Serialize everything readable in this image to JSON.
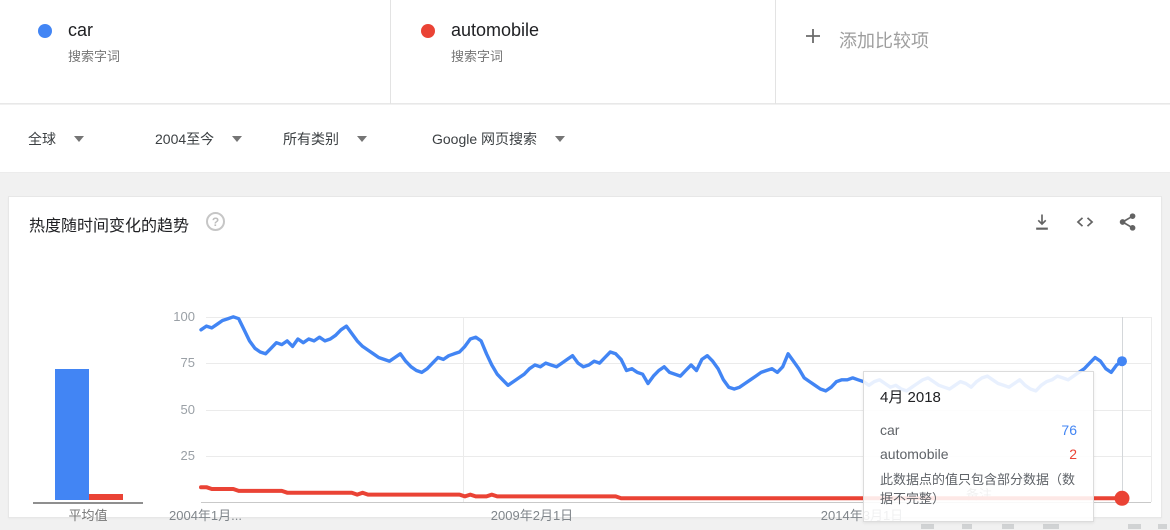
{
  "terms": [
    {
      "label": "car",
      "sublabel": "搜索字词",
      "color": "#4285F4"
    },
    {
      "label": "automobile",
      "sublabel": "搜索字词",
      "color": "#EA4335"
    }
  ],
  "add_comparison": {
    "label": "添加比较项"
  },
  "filters": [
    {
      "label": "全球"
    },
    {
      "label": "2004至今"
    },
    {
      "label": "所有类别"
    },
    {
      "label": "Google 网页搜索"
    }
  ],
  "chart_card": {
    "title": "热度随时间变化的趋势",
    "help_glyph": "?",
    "icons": [
      "download-icon",
      "embed-icon",
      "share-icon"
    ],
    "avg_label": "平均值",
    "note_label": "备注",
    "y_ticks": [
      "100",
      "75",
      "50",
      "25"
    ],
    "x_labels": [
      "2004年1月...",
      "2009年2月1日",
      "2014年3月1日"
    ]
  },
  "tooltip": {
    "date": "4月 2018",
    "rows": [
      {
        "label": "car",
        "value": "76",
        "color": "#4285F4"
      },
      {
        "label": "automobile",
        "value": "2",
        "color": "#EA4335"
      }
    ],
    "note": "此数据点的值只包含部分数据（数据不完整）"
  },
  "chart_data": {
    "type": "line",
    "title": "热度随时间变化的趋势",
    "x_start": "2004-01",
    "x_end": "2018-04",
    "x_tick_labels": [
      "2004年1月...",
      "2009年2月1日",
      "2014年3月1日"
    ],
    "ylim": [
      0,
      100
    ],
    "y_ticks": [
      25,
      50,
      75,
      100
    ],
    "grid": true,
    "series": [
      {
        "name": "car",
        "color": "#4285F4",
        "values": [
          93,
          95,
          94,
          96,
          98,
          99,
          100,
          99,
          93,
          87,
          83,
          81,
          80,
          83,
          86,
          85,
          87,
          84,
          88,
          86,
          88,
          87,
          89,
          87,
          88,
          90,
          93,
          95,
          91,
          87,
          84,
          82,
          80,
          78,
          77,
          76,
          78,
          80,
          76,
          73,
          71,
          70,
          72,
          75,
          78,
          77,
          79,
          80,
          81,
          84,
          88,
          89,
          87,
          80,
          74,
          69,
          66,
          63,
          65,
          67,
          69,
          72,
          74,
          73,
          75,
          74,
          73,
          75,
          77,
          79,
          75,
          73,
          74,
          76,
          75,
          78,
          81,
          80,
          77,
          71,
          72,
          70,
          69,
          64,
          68,
          71,
          73,
          70,
          69,
          68,
          71,
          74,
          71,
          77,
          79,
          76,
          72,
          66,
          62,
          61,
          62,
          64,
          66,
          68,
          70,
          71,
          72,
          70,
          73,
          80,
          76,
          72,
          67,
          65,
          63,
          61,
          60,
          62,
          65,
          66,
          66,
          67,
          66,
          65,
          63,
          65,
          66,
          64,
          62,
          63,
          61,
          60,
          62,
          64,
          66,
          67,
          65,
          63,
          62,
          61,
          63,
          65,
          64,
          62,
          65,
          67,
          68,
          66,
          64,
          63,
          62,
          64,
          66,
          63,
          61,
          60,
          63,
          65,
          66,
          68,
          67,
          66,
          68,
          70,
          72,
          75,
          78,
          76,
          72,
          70,
          74,
          76
        ]
      },
      {
        "name": "automobile",
        "color": "#EA4335",
        "values": [
          8,
          8,
          7,
          7,
          7,
          7,
          7,
          6,
          6,
          6,
          6,
          6,
          6,
          6,
          6,
          6,
          5,
          5,
          5,
          5,
          5,
          5,
          5,
          5,
          5,
          5,
          5,
          5,
          5,
          4,
          5,
          4,
          4,
          4,
          4,
          4,
          4,
          4,
          4,
          4,
          4,
          4,
          4,
          4,
          4,
          4,
          4,
          4,
          4,
          3,
          4,
          3,
          3,
          3,
          4,
          3,
          3,
          3,
          3,
          3,
          3,
          3,
          3,
          3,
          3,
          3,
          3,
          3,
          3,
          3,
          3,
          3,
          3,
          3,
          3,
          3,
          3,
          3,
          2,
          2,
          2,
          2,
          2,
          2,
          2,
          2,
          2,
          2,
          2,
          2,
          2,
          2,
          2,
          2,
          2,
          2,
          2,
          2,
          2,
          2,
          2,
          2,
          2,
          2,
          2,
          2,
          2,
          2,
          2,
          2,
          2,
          2,
          2,
          2,
          2,
          2,
          2,
          2,
          2,
          2,
          2,
          2,
          2,
          2,
          2,
          2,
          2,
          2,
          2,
          2,
          2,
          2,
          2,
          2,
          2,
          2,
          2,
          2,
          2,
          2,
          2,
          2,
          2,
          2,
          2,
          2,
          2,
          2,
          2,
          2,
          2,
          2,
          2,
          2,
          2,
          2,
          2,
          2,
          2,
          2,
          2,
          2,
          2,
          2,
          2,
          2,
          2,
          2,
          2,
          2,
          2,
          2
        ]
      }
    ],
    "averages_bar": {
      "label": "平均值",
      "categories": [
        "car",
        "automobile"
      ],
      "values": [
        71,
        3
      ]
    },
    "hover_point": {
      "date": "4月 2018",
      "values": {
        "car": 76,
        "automobile": 2
      },
      "partial_data": true
    }
  }
}
